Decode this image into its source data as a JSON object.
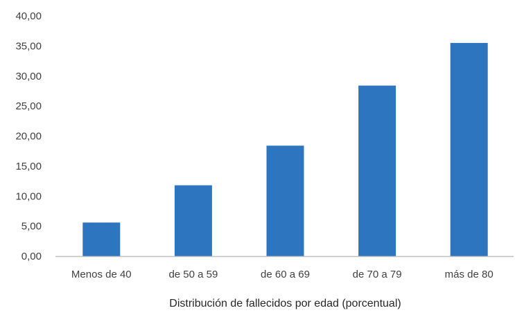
{
  "chart_data": {
    "type": "bar",
    "categories": [
      "Menos de 40",
      "de 50 a 59",
      "de 60 a 69",
      "de 70 a 79",
      "más de 80"
    ],
    "values": [
      5.6,
      11.8,
      18.4,
      28.4,
      35.5
    ],
    "title": "",
    "xlabel": "Distribución de fallecidos por edad (porcentual)",
    "ylabel": "",
    "ylim": [
      0,
      40
    ],
    "yticks": [
      "0,00",
      "5,00",
      "10,00",
      "15,00",
      "20,00",
      "25,00",
      "30,00",
      "35,00",
      "40,00"
    ],
    "grid": false,
    "legend": "none",
    "bar_color": "#2E75C0",
    "axis_color": "#BFBFBF"
  }
}
